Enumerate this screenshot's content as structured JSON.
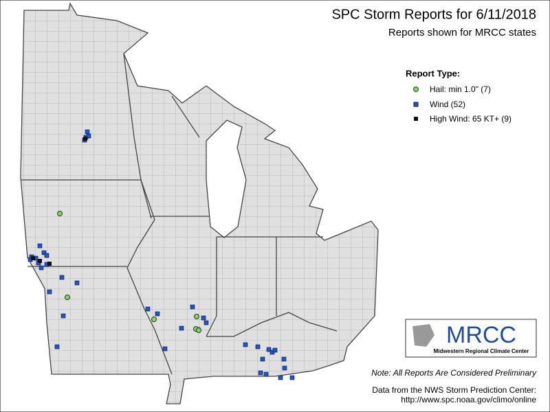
{
  "header": {
    "title": "SPC Storm Reports for 6/11/2018",
    "subtitle": "Reports shown for MRCC states"
  },
  "legend": {
    "title": "Report Type:",
    "items": [
      "Hail: min 1.0\" (7)",
      "Wind (52)",
      "High Wind: 65 KT+ (9)"
    ]
  },
  "logo": {
    "name": "MRCC",
    "caption": "Midwestern Regional Climate Center"
  },
  "footer": {
    "note": "Note: All Reports Are Considered Preliminary",
    "source": [
      "Data from the NWS Storm Prediction Center:",
      "http://www.spc.noaa.gov/climo/online"
    ]
  }
}
